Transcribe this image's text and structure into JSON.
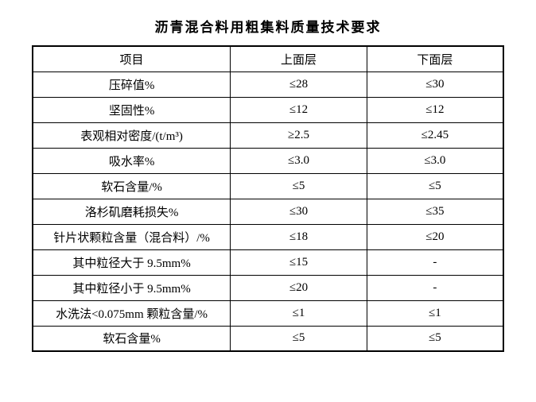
{
  "title": "沥青混合料用粗集料质量技术要求",
  "columns": [
    {
      "label": "项目"
    },
    {
      "label": "上面层"
    },
    {
      "label": "下面层"
    }
  ],
  "rows": [
    {
      "item": "压碎值%",
      "upper": "≤28",
      "lower": "≤30"
    },
    {
      "item": "坚固性%",
      "upper": "≤12",
      "lower": "≤12"
    },
    {
      "item": "表观相对密度/(t/m³)",
      "upper": "≥2.5",
      "lower": "≤2.45"
    },
    {
      "item": "吸水率%",
      "upper": "≤3.0",
      "lower": "≤3.0"
    },
    {
      "item": "软石含量/%",
      "upper": "≤5",
      "lower": "≤5"
    },
    {
      "item": "洛杉矶磨耗损失%",
      "upper": "≤30",
      "lower": "≤35"
    },
    {
      "item": "针片状颗粒含量（混合料）/%",
      "upper": "≤18",
      "lower": "≤20"
    },
    {
      "item": "其中粒径大于 9.5mm%",
      "upper": "≤15",
      "lower": "-"
    },
    {
      "item": "其中粒径小于 9.5mm%",
      "upper": "≤20",
      "lower": "-"
    },
    {
      "item": "水洗法<0.075mm 颗粒含量/%",
      "upper": "≤1",
      "lower": "≤1"
    },
    {
      "item": "软石含量%",
      "upper": "≤5",
      "lower": "≤5"
    }
  ],
  "colors": {
    "background": "#ffffff",
    "text": "#000000",
    "border": "#000000"
  },
  "typography": {
    "font_family": "SimSun",
    "title_fontsize": 17,
    "cell_fontsize": 15
  }
}
